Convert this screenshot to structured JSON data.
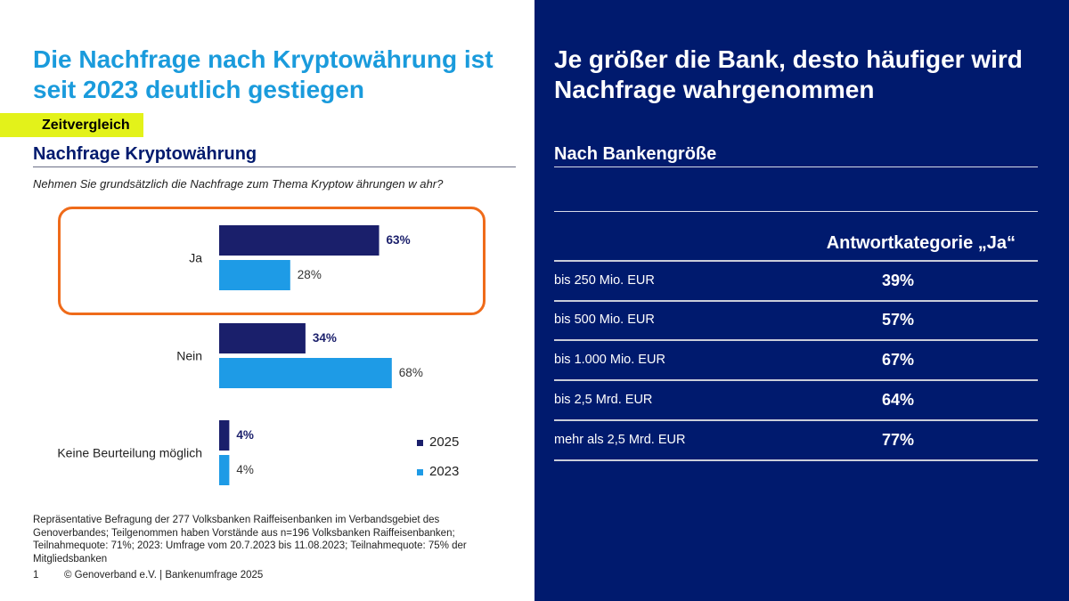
{
  "left": {
    "title": "Die Nachfrage nach Kryptowährung ist seit 2023 deutlich gestiegen",
    "tag": "Zeitvergleich",
    "section_title": "Nachfrage Kryptowährung",
    "question": "Nehmen Sie grundsätzlich die Nachfrage zum Thema Kryptow ährungen w ahr?",
    "source": "Repräsentative Befragung der 277 Volksbanken Raiffeisenbanken im Verbandsgebiet des Genoverbandes; Teilgenommen haben Vorstände aus n=196 Volksbanken Raiffeisenbanken; Teilnahmequote: 71%; 2023: Umfrage vom 20.7.2023 bis 11.08.2023; Teilnahmequote: 75% der Mitgliedsbanken",
    "page_number": "1",
    "footer": "© Genoverband e.V. | Bankenumfrage 2025"
  },
  "right": {
    "title": "Je größer die Bank, desto häufiger wird Nachfrage wahrgenommen",
    "subtitle": "Nach Bankengröße",
    "column_header": "Antwortkategorie „Ja“",
    "rows": [
      {
        "label": "bis 250 Mio. EUR",
        "value": "39%"
      },
      {
        "label": "bis 500 Mio. EUR",
        "value": "57%"
      },
      {
        "label": "bis 1.000 Mio. EUR",
        "value": "67%"
      },
      {
        "label": "bis 2,5 Mrd. EUR",
        "value": "64%"
      },
      {
        "label": "mehr als 2,5 Mrd. EUR",
        "value": "77%"
      }
    ]
  },
  "colors": {
    "navy": "#001a6e",
    "series_2025": "#1a1f6b",
    "series_2023": "#1e9be6",
    "title_blue": "#1a9bdc",
    "tag_yellow": "#e3f21a",
    "highlight_orange": "#ef6b1a"
  },
  "chart_data": {
    "type": "bar",
    "orientation": "horizontal",
    "categories": [
      "Ja",
      "Nein",
      "Keine Beurteilung möglich"
    ],
    "series": [
      {
        "name": "2025",
        "values": [
          63,
          34,
          4
        ],
        "labels": [
          "63%",
          "34%",
          "4%"
        ],
        "color": "#1a1f6b"
      },
      {
        "name": "2023",
        "values": [
          28,
          68,
          4
        ],
        "labels": [
          "28%",
          "68%",
          "4%"
        ],
        "color": "#1e9be6"
      }
    ],
    "xlim": [
      0,
      100
    ],
    "grid": false,
    "legend": "bottom-right"
  }
}
